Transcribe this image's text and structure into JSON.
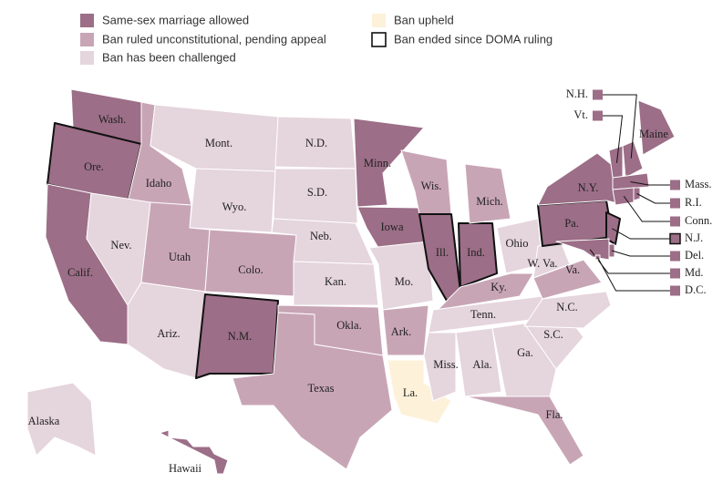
{
  "legend": [
    {
      "label": "Same-sex marriage allowed",
      "color": "#9c6e87"
    },
    {
      "label": "Ban ruled unconstitutional, pending appeal",
      "color": "#c8a5b5"
    },
    {
      "label": "Ban has been challenged",
      "color": "#e5d5dc"
    },
    {
      "label": "Ban upheld",
      "color": "#fdf1da"
    },
    {
      "label": "Ban ended since DOMA ruling",
      "border": "#111111"
    }
  ],
  "states": [
    {
      "label": "Wash.",
      "status": 0
    },
    {
      "label": "Ore.",
      "status": 0,
      "doma": true
    },
    {
      "label": "Calif.",
      "status": 0
    },
    {
      "label": "Idaho",
      "status": 1
    },
    {
      "label": "Nev.",
      "status": 2
    },
    {
      "label": "Mont.",
      "status": 2
    },
    {
      "label": "Wyo.",
      "status": 2
    },
    {
      "label": "Utah",
      "status": 1
    },
    {
      "label": "Ariz.",
      "status": 2
    },
    {
      "label": "Colo.",
      "status": 1
    },
    {
      "label": "N.M.",
      "status": 0,
      "doma": true
    },
    {
      "label": "N.D.",
      "status": 2
    },
    {
      "label": "S.D.",
      "status": 2
    },
    {
      "label": "Neb.",
      "status": 2
    },
    {
      "label": "Kan.",
      "status": 2
    },
    {
      "label": "Okla.",
      "status": 1
    },
    {
      "label": "Texas",
      "status": 1
    },
    {
      "label": "Minn.",
      "status": 0
    },
    {
      "label": "Iowa",
      "status": 0
    },
    {
      "label": "Mo.",
      "status": 2
    },
    {
      "label": "Ark.",
      "status": 1
    },
    {
      "label": "La.",
      "status": 3
    },
    {
      "label": "Wis.",
      "status": 1
    },
    {
      "label": "Ill.",
      "status": 0,
      "doma": true
    },
    {
      "label": "Ind.",
      "status": 0,
      "doma": true
    },
    {
      "label": "Mich.",
      "status": 1
    },
    {
      "label": "Ohio",
      "status": 2
    },
    {
      "label": "Ky.",
      "status": 1
    },
    {
      "label": "Tenn.",
      "status": 2
    },
    {
      "label": "Miss.",
      "status": 2
    },
    {
      "label": "Ala.",
      "status": 2
    },
    {
      "label": "Ga.",
      "status": 2
    },
    {
      "label": "Fla.",
      "status": 1
    },
    {
      "label": "S.C.",
      "status": 2
    },
    {
      "label": "N.C.",
      "status": 2
    },
    {
      "label": "Va.",
      "status": 1
    },
    {
      "label": "W. Va.",
      "status": 2
    },
    {
      "label": "Pa.",
      "status": 0,
      "doma": true
    },
    {
      "label": "N.Y.",
      "status": 0
    },
    {
      "label": "Maine",
      "status": 0
    },
    {
      "label": "Alaska",
      "status": 2
    },
    {
      "label": "Hawaii",
      "status": 0
    },
    {
      "label": "N.H.",
      "status": 0
    },
    {
      "label": "Vt.",
      "status": 0
    },
    {
      "label": "Mass.",
      "status": 0
    },
    {
      "label": "R.I.",
      "status": 0
    },
    {
      "label": "Conn.",
      "status": 0
    },
    {
      "label": "N.J.",
      "status": 0,
      "doma": true
    },
    {
      "label": "Del.",
      "status": 0
    },
    {
      "label": "Md.",
      "status": 0
    },
    {
      "label": "D.C.",
      "status": 0
    }
  ]
}
